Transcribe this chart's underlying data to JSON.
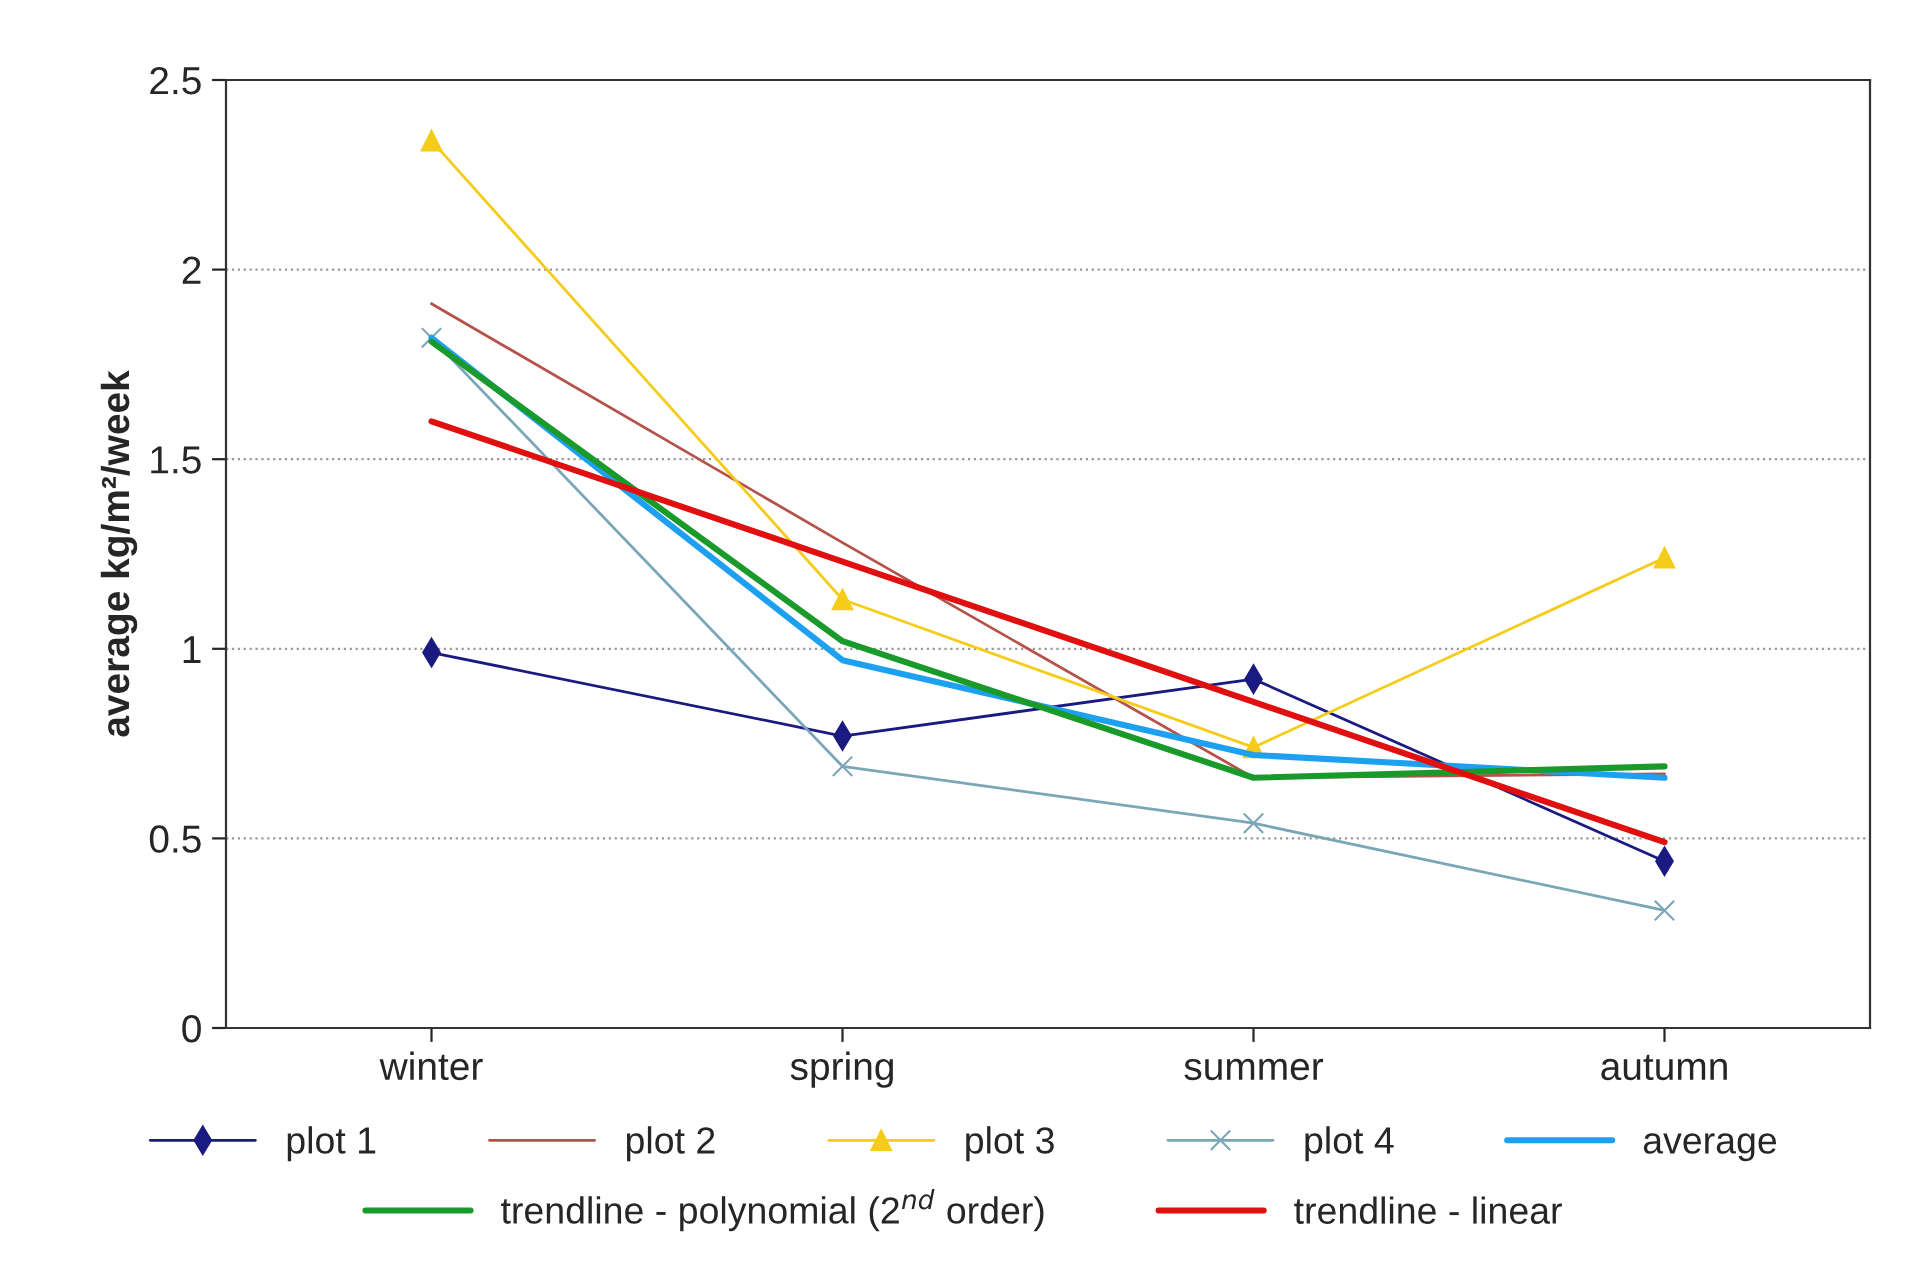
{
  "chart_data": {
    "type": "line",
    "ylabel": "average kg/m²/week",
    "categories": [
      "winter",
      "spring",
      "summer",
      "autumn"
    ],
    "series": [
      {
        "name": "plot 1",
        "color": "#1a1a80",
        "marker": "diamond",
        "values": [
          0.99,
          0.77,
          0.92,
          0.44
        ]
      },
      {
        "name": "plot 2",
        "color": "#b5524a",
        "marker": "none",
        "values": [
          1.91,
          1.28,
          0.66,
          0.67
        ]
      },
      {
        "name": "plot 3",
        "color": "#f5cc1a",
        "marker": "triangle",
        "values": [
          2.34,
          1.13,
          0.74,
          1.24
        ]
      },
      {
        "name": "plot 4",
        "color": "#7aa6b8",
        "marker": "cross",
        "values": [
          1.82,
          0.69,
          0.54,
          0.31
        ]
      },
      {
        "name": "average",
        "color": "#1ea0f0",
        "marker": "none",
        "values": [
          1.82,
          0.97,
          0.72,
          0.66
        ]
      },
      {
        "name": "trendline - polynomial (2$^{nd}$ order)",
        "color": "#1a9a2a",
        "marker": "none",
        "values": [
          1.81,
          1.02,
          0.66,
          0.69
        ]
      },
      {
        "name": "trendline - linear",
        "color": "#e01010",
        "marker": "none",
        "values": [
          1.6,
          1.23,
          0.86,
          0.49
        ]
      }
    ],
    "ylim": [
      0,
      2.5
    ],
    "yticks": [
      0,
      0.5,
      1,
      1.5,
      2,
      2.5
    ],
    "grid": "y",
    "legend": "bottom",
    "line_style": "solid"
  }
}
